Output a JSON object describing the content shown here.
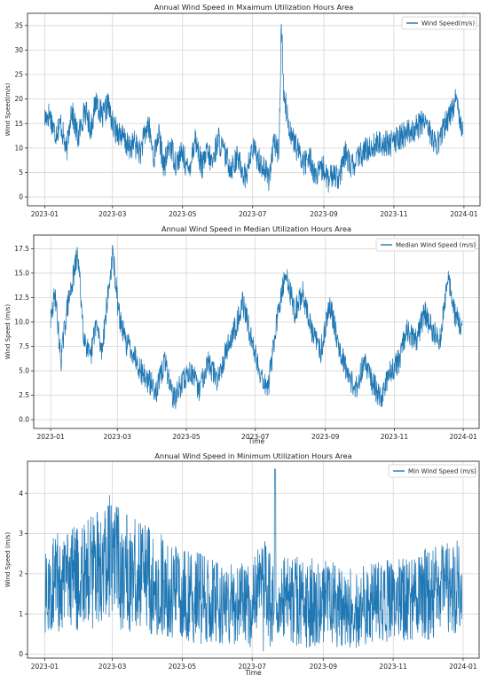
{
  "chart_data": [
    {
      "type": "line",
      "title": "Annual Wind Speed in Mxaimum Utilization Hours Area",
      "xlabel": "",
      "ylabel": "Wind Speed(m/s)",
      "xlim": [
        "2022-12-17",
        "2024-01-15"
      ],
      "ylim": [
        -1.8,
        37.5
      ],
      "x_ticks": [
        "2023-01",
        "2023-03",
        "2023-05",
        "2023-07",
        "2023-09",
        "2023-11",
        "2024-01"
      ],
      "y_ticks": [
        0,
        5,
        10,
        15,
        20,
        25,
        30,
        35
      ],
      "y_tick_labels": [
        "0",
        "5",
        "10",
        "15",
        "20",
        "25",
        "30",
        "35"
      ],
      "grid": true,
      "legend_position": "top-right",
      "series": [
        {
          "name": "Wind Speed(m/s)",
          "color": "#1f77b4",
          "x": [
            "2023-01-01",
            "2023-01-05",
            "2023-01-10",
            "2023-01-15",
            "2023-01-20",
            "2023-01-24",
            "2023-01-30",
            "2023-02-05",
            "2023-02-10",
            "2023-02-15",
            "2023-02-20",
            "2023-02-25",
            "2023-03-02",
            "2023-03-08",
            "2023-03-15",
            "2023-03-20",
            "2023-03-25",
            "2023-04-01",
            "2023-04-06",
            "2023-04-10",
            "2023-04-15",
            "2023-04-20",
            "2023-04-25",
            "2023-05-01",
            "2023-05-06",
            "2023-05-12",
            "2023-05-18",
            "2023-05-22",
            "2023-05-27",
            "2023-06-01",
            "2023-06-06",
            "2023-06-12",
            "2023-06-18",
            "2023-06-25",
            "2023-07-01",
            "2023-07-08",
            "2023-07-15",
            "2023-07-20",
            "2023-07-24",
            "2023-07-26",
            "2023-07-28",
            "2023-08-01",
            "2023-08-05",
            "2023-08-10",
            "2023-08-15",
            "2023-08-20",
            "2023-08-25",
            "2023-09-01",
            "2023-09-05",
            "2023-09-10",
            "2023-09-15",
            "2023-09-20",
            "2023-09-25",
            "2023-10-01",
            "2023-10-10",
            "2023-10-20",
            "2023-10-30",
            "2023-11-05",
            "2023-11-12",
            "2023-11-20",
            "2023-11-28",
            "2023-12-03",
            "2023-12-08",
            "2023-12-14",
            "2023-12-20",
            "2023-12-25",
            "2023-12-31"
          ],
          "values": [
            16,
            17,
            13,
            15,
            9,
            18,
            12,
            18,
            14,
            20,
            16,
            19,
            14,
            13,
            10,
            11,
            9,
            15,
            8,
            13,
            6,
            11,
            7,
            9,
            5,
            12,
            6,
            9,
            7,
            12,
            9,
            6,
            8,
            4,
            10,
            7,
            4,
            11,
            9,
            36,
            22,
            15,
            12,
            9,
            7,
            8,
            4,
            6,
            3,
            5,
            4,
            9,
            6,
            8,
            10,
            11,
            11,
            12,
            13,
            14,
            16,
            13,
            10,
            14,
            17,
            20,
            14
          ]
        }
      ]
    },
    {
      "type": "line",
      "title": "Annual Wind Speed in Median Utilization Hours Area",
      "xlabel": "Time",
      "ylabel": "Wind Speed (m/s)",
      "xlim": [
        "2022-12-17",
        "2024-01-15"
      ],
      "ylim": [
        -0.9,
        18.9
      ],
      "x_ticks": [
        "2023-01",
        "2023-03",
        "2023-05",
        "2023-07",
        "2023-09",
        "2023-11",
        "2024-01"
      ],
      "y_ticks": [
        0,
        2.5,
        5,
        7.5,
        10,
        12.5,
        15,
        17.5
      ],
      "y_tick_labels": [
        "0.0",
        "2.5",
        "5.0",
        "7.5",
        "10.0",
        "12.5",
        "15.0",
        "17.5"
      ],
      "grid": true,
      "legend_position": "top-right",
      "series": [
        {
          "name": "Median Wind Speed (m/s)",
          "color": "#1f77b4",
          "x": [
            "2023-01-01",
            "2023-01-05",
            "2023-01-10",
            "2023-01-15",
            "2023-01-20",
            "2023-01-25",
            "2023-01-30",
            "2023-02-05",
            "2023-02-10",
            "2023-02-15",
            "2023-02-20",
            "2023-02-25",
            "2023-03-02",
            "2023-03-08",
            "2023-03-15",
            "2023-03-22",
            "2023-03-28",
            "2023-04-05",
            "2023-04-12",
            "2023-04-20",
            "2023-04-28",
            "2023-05-05",
            "2023-05-12",
            "2023-05-20",
            "2023-05-28",
            "2023-06-05",
            "2023-06-12",
            "2023-06-20",
            "2023-06-28",
            "2023-07-05",
            "2023-07-12",
            "2023-07-20",
            "2023-07-28",
            "2023-08-05",
            "2023-08-12",
            "2023-08-20",
            "2023-08-28",
            "2023-09-05",
            "2023-09-12",
            "2023-09-20",
            "2023-09-28",
            "2023-10-05",
            "2023-10-12",
            "2023-10-20",
            "2023-10-28",
            "2023-11-05",
            "2023-11-12",
            "2023-11-20",
            "2023-11-28",
            "2023-12-05",
            "2023-12-12",
            "2023-12-18",
            "2023-12-24",
            "2023-12-31"
          ],
          "values": [
            10,
            13,
            6,
            11,
            14,
            17,
            9,
            6,
            10,
            7,
            12,
            17,
            11,
            8,
            7,
            5,
            4,
            3,
            6,
            2,
            4,
            5,
            3,
            6,
            4,
            7,
            9,
            12,
            8,
            5,
            3,
            10,
            15,
            11,
            13,
            9,
            7,
            12,
            8,
            5,
            3,
            6,
            4,
            2,
            5,
            6,
            9,
            8,
            11,
            9,
            8,
            15,
            11,
            9
          ]
        }
      ]
    },
    {
      "type": "line",
      "title": "Annual Wind Speed in Minimum Utilization Hours Area",
      "xlabel": "Time",
      "ylabel": "Wind Speed (m/s)",
      "xlim": [
        "2022-12-17",
        "2024-01-15"
      ],
      "ylim": [
        -0.1,
        4.8
      ],
      "x_ticks": [
        "2023-01",
        "2023-03",
        "2023-05",
        "2023-07",
        "2023-09",
        "2023-11",
        "2024-01"
      ],
      "y_ticks": [
        0,
        1,
        2,
        3,
        4
      ],
      "y_tick_labels": [
        "0",
        "1",
        "2",
        "3",
        "4"
      ],
      "grid": true,
      "legend_position": "top-right",
      "series": [
        {
          "name": "Min Wind Speed (m/s)",
          "color": "#1f77b4",
          "x": [
            "2023-01-01",
            "2023-01-15",
            "2023-02-01",
            "2023-02-15",
            "2023-03-01",
            "2023-03-15",
            "2023-04-01",
            "2023-04-15",
            "2023-05-01",
            "2023-05-15",
            "2023-06-01",
            "2023-06-15",
            "2023-07-01",
            "2023-07-10",
            "2023-07-20",
            "2023-08-01",
            "2023-08-15",
            "2023-09-01",
            "2023-09-15",
            "2023-10-01",
            "2023-10-15",
            "2023-11-01",
            "2023-11-15",
            "2023-12-01",
            "2023-12-15",
            "2023-12-31"
          ],
          "values": [
            1.6,
            1.8,
            1.9,
            2.1,
            2.2,
            2.0,
            1.8,
            1.7,
            1.5,
            1.4,
            1.3,
            1.3,
            1.2,
            1.5,
            1.3,
            1.4,
            1.3,
            1.3,
            1.2,
            1.2,
            1.3,
            1.3,
            1.4,
            1.5,
            1.6,
            1.7
          ],
          "spread": [
            1.1,
            1.2,
            1.3,
            1.4,
            1.5,
            1.4,
            1.3,
            1.2,
            1.1,
            1.1,
            1.0,
            1.0,
            1.0,
            1.4,
            1.1,
            1.1,
            1.1,
            1.0,
            1.0,
            1.0,
            1.0,
            1.0,
            1.0,
            1.1,
            1.1,
            1.1
          ],
          "peak_date": "2023-07-21",
          "peak_value": 4.6
        }
      ]
    }
  ]
}
